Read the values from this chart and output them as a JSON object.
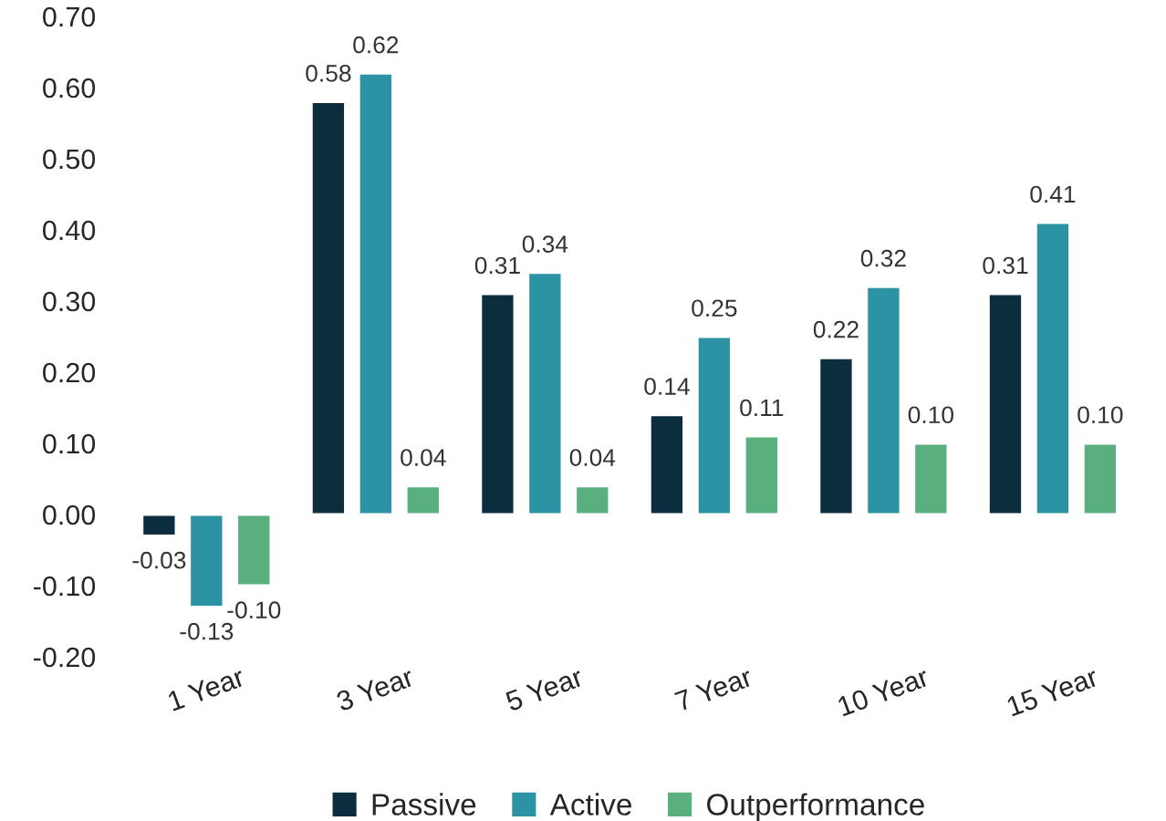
{
  "chart_data": {
    "type": "bar",
    "categories": [
      "1 Year",
      "3 Year",
      "5 Year",
      "7 Year",
      "10 Year",
      "15 Year"
    ],
    "series": [
      {
        "name": "Passive",
        "color": "#0b2d3d",
        "values": [
          -0.03,
          0.58,
          0.31,
          0.14,
          0.22,
          0.31
        ],
        "value_labels": [
          "-0.03",
          "0.58",
          "0.31",
          "0.14",
          "0.22",
          "0.31"
        ]
      },
      {
        "name": "Active",
        "color": "#2b93a3",
        "values": [
          -0.13,
          0.62,
          0.34,
          0.25,
          0.32,
          0.41
        ],
        "value_labels": [
          "-0.13",
          "0.62",
          "0.34",
          "0.25",
          "0.32",
          "0.41"
        ]
      },
      {
        "name": "Outperformance",
        "color": "#5aaf7e",
        "values": [
          -0.1,
          0.04,
          0.04,
          0.11,
          0.1,
          0.1
        ],
        "value_labels": [
          "-0.10",
          "0.04",
          "0.04",
          "0.11",
          "0.10",
          "0.10"
        ]
      }
    ],
    "ylim": [
      -0.2,
      0.7
    ],
    "yticks": [
      {
        "value": -0.2,
        "label": "-0.20"
      },
      {
        "value": -0.1,
        "label": "-0.10"
      },
      {
        "value": 0,
        "label": "0.00"
      },
      {
        "value": 0.1,
        "label": "0.10"
      },
      {
        "value": 0.2,
        "label": "0.20"
      },
      {
        "value": 0.3,
        "label": "0.30"
      },
      {
        "value": 0.4,
        "label": "0.40"
      },
      {
        "value": 0.5,
        "label": "0.50"
      },
      {
        "value": 0.6,
        "label": "0.60"
      },
      {
        "value": 0.7,
        "label": "0.70"
      }
    ],
    "grid": false,
    "legend": "bottom"
  }
}
